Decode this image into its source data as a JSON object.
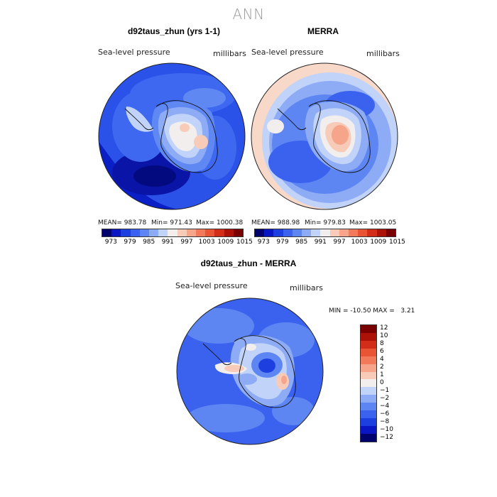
{
  "figure_title": "ANN",
  "panels": {
    "left": {
      "title": "d92taus_zhun (yrs 1-1)",
      "variable": "Sea-level pressure",
      "units": "millibars",
      "stats": {
        "mean": "MEAN= 983.78",
        "min": "Min= 971.43",
        "max": "Max= 1000.38"
      }
    },
    "right": {
      "title": "MERRA",
      "variable": "Sea-level pressure",
      "units": "millibars",
      "stats": {
        "mean": "MEAN= 988.98",
        "min": "Min= 979.83",
        "max": "Max= 1003.05"
      }
    },
    "diff": {
      "title": "d92taus_zhun - MERRA",
      "variable": "Sea-level pressure",
      "units": "millibars",
      "stats": "MIN = -10.50 MAX =   3.21"
    }
  },
  "colorbar_top": {
    "colors": [
      "#02026e",
      "#0a15c4",
      "#1d3fe0",
      "#3a62ee",
      "#5e86f2",
      "#8eabf5",
      "#c1d3f8",
      "#f2eeee",
      "#f8cbb9",
      "#f6a48a",
      "#f27a5a",
      "#e85434",
      "#d22d18",
      "#ad1208",
      "#7a0000"
    ],
    "tick_labels": [
      "973",
      "979",
      "985",
      "991",
      "997",
      "1003",
      "1009",
      "1015"
    ]
  },
  "colorbar_diff": {
    "colors": [
      "#02026e",
      "#0a15c4",
      "#1d3fe0",
      "#3a62ee",
      "#5e86f2",
      "#8eabf5",
      "#c1d3f8",
      "#f2eeee",
      "#f8cbb9",
      "#f6a48a",
      "#f27a5a",
      "#e85434",
      "#d22d18",
      "#ad1208",
      "#7a0000"
    ],
    "tick_labels": [
      "12",
      "10",
      "8",
      "6",
      "4",
      "2",
      "1",
      "0",
      "−1",
      "−2",
      "−4",
      "−6",
      "−8",
      "−10",
      "−12"
    ]
  }
}
